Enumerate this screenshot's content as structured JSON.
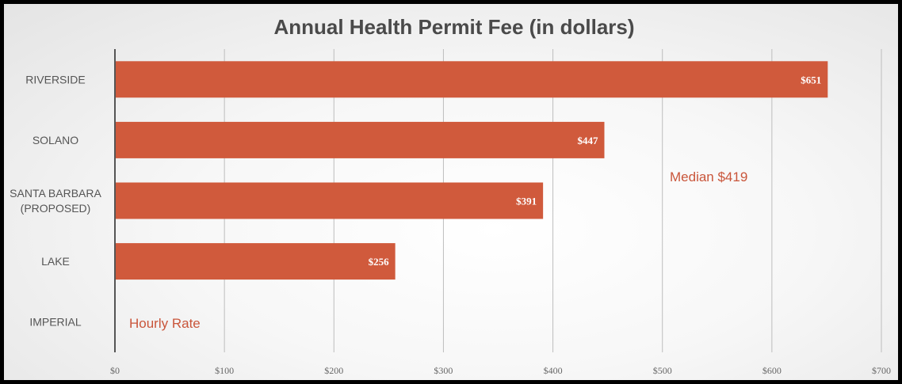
{
  "chart_data": {
    "type": "bar",
    "orientation": "horizontal",
    "title": "Annual Health Permit Fee (in dollars)",
    "categories": [
      "RIVERSIDE",
      "SOLANO",
      "SANTA BARBARA (PROPOSED)",
      "LAKE",
      "IMPERIAL"
    ],
    "category_lines": [
      [
        "RIVERSIDE"
      ],
      [
        "SOLANO"
      ],
      [
        "SANTA BARBARA",
        "(PROPOSED)"
      ],
      [
        "LAKE"
      ],
      [
        "IMPERIAL"
      ]
    ],
    "values": [
      651,
      447,
      391,
      256,
      null
    ],
    "data_labels": [
      "$651",
      "$447",
      "$391",
      "$256",
      ""
    ],
    "xlim": [
      0,
      700
    ],
    "xticks": [
      0,
      100,
      200,
      300,
      400,
      500,
      600,
      700
    ],
    "xtick_labels": [
      "$0",
      "$100",
      "$200",
      "$300",
      "$400",
      "$500",
      "$600",
      "$700"
    ],
    "grid": true,
    "bar_color": "#d05a3c",
    "annotations": [
      {
        "text": "Median $419",
        "near": "SOLANO / SANTA BARBARA, right side"
      },
      {
        "text": "Hourly Rate",
        "near": "IMPERIAL"
      }
    ]
  }
}
